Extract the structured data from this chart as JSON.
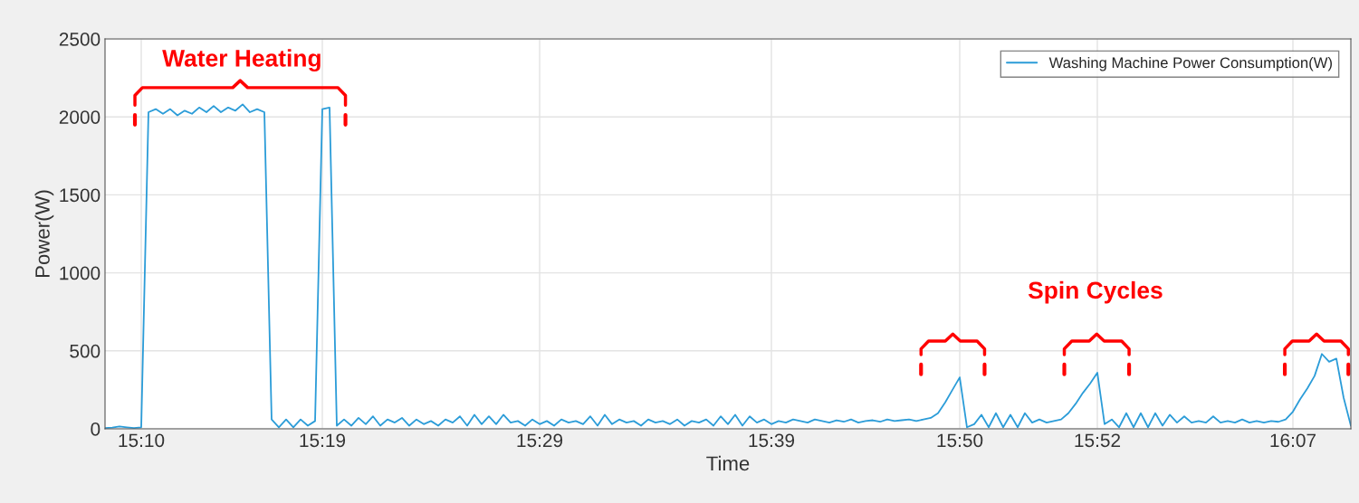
{
  "chart_data": {
    "type": "line",
    "xlabel": "Time",
    "ylabel": "Power(W)",
    "ylim": [
      0,
      2500
    ],
    "yticks": [
      0,
      500,
      1000,
      1500,
      2000,
      2500
    ],
    "grid": true,
    "legend": "top right",
    "annotations": [
      "Water Heating",
      "Spin Cycles"
    ],
    "categories": [
      null,
      null,
      null,
      null,
      null,
      "15:10",
      null,
      null,
      null,
      null,
      null,
      null,
      null,
      null,
      null,
      null,
      null,
      null,
      null,
      null,
      null,
      null,
      null,
      null,
      null,
      null,
      null,
      null,
      null,
      null,
      "15:19",
      null,
      null,
      null,
      null,
      null,
      null,
      null,
      null,
      null,
      null,
      null,
      null,
      null,
      null,
      null,
      null,
      null,
      null,
      null,
      null,
      null,
      null,
      null,
      null,
      null,
      null,
      null,
      null,
      null,
      "15:29",
      null,
      null,
      null,
      null,
      null,
      null,
      null,
      null,
      null,
      null,
      null,
      null,
      null,
      null,
      null,
      null,
      null,
      null,
      null,
      null,
      null,
      null,
      null,
      null,
      null,
      null,
      null,
      null,
      null,
      null,
      null,
      "15:39",
      null,
      null,
      null,
      null,
      null,
      null,
      null,
      null,
      null,
      null,
      null,
      null,
      null,
      null,
      null,
      null,
      null,
      null,
      null,
      null,
      null,
      null,
      null,
      null,
      null,
      "15:50",
      null,
      null,
      null,
      null,
      null,
      null,
      null,
      null,
      null,
      null,
      null,
      null,
      null,
      null,
      null,
      null,
      null,
      null,
      "15:52",
      null,
      null,
      null,
      null,
      null,
      null,
      null,
      null,
      null,
      null,
      null,
      null,
      null,
      null,
      null,
      null,
      null,
      null,
      null,
      null,
      null,
      null,
      null,
      null,
      null,
      null,
      "16:07",
      null,
      null,
      null,
      null,
      null,
      null,
      null,
      null
    ],
    "series": [
      {
        "name": "Washing Machine Power Consumption(W)",
        "color": "#2b9cd8",
        "values": [
          5,
          8,
          15,
          10,
          5,
          10,
          2030,
          2050,
          2020,
          2050,
          2010,
          2040,
          2020,
          2060,
          2030,
          2070,
          2030,
          2060,
          2040,
          2080,
          2030,
          2050,
          2030,
          60,
          10,
          60,
          10,
          60,
          20,
          50,
          2050,
          2060,
          20,
          60,
          20,
          70,
          30,
          80,
          20,
          60,
          40,
          70,
          20,
          60,
          30,
          50,
          20,
          60,
          40,
          80,
          20,
          90,
          30,
          80,
          30,
          90,
          40,
          50,
          20,
          60,
          30,
          50,
          20,
          60,
          40,
          50,
          30,
          80,
          20,
          90,
          30,
          60,
          40,
          50,
          20,
          60,
          40,
          50,
          30,
          60,
          20,
          50,
          40,
          60,
          20,
          80,
          30,
          90,
          20,
          80,
          40,
          60,
          30,
          50,
          40,
          60,
          50,
          40,
          60,
          50,
          40,
          55,
          45,
          60,
          40,
          50,
          55,
          45,
          60,
          50,
          55,
          60,
          50,
          60,
          70,
          100,
          170,
          250,
          330,
          10,
          30,
          90,
          10,
          100,
          10,
          90,
          10,
          100,
          40,
          60,
          40,
          50,
          60,
          100,
          160,
          230,
          290,
          360,
          30,
          60,
          10,
          100,
          10,
          100,
          10,
          100,
          20,
          90,
          40,
          80,
          40,
          50,
          40,
          80,
          40,
          50,
          40,
          60,
          40,
          50,
          40,
          50,
          45,
          60,
          110,
          190,
          260,
          340,
          480,
          430,
          450,
          200,
          20
        ]
      }
    ]
  }
}
